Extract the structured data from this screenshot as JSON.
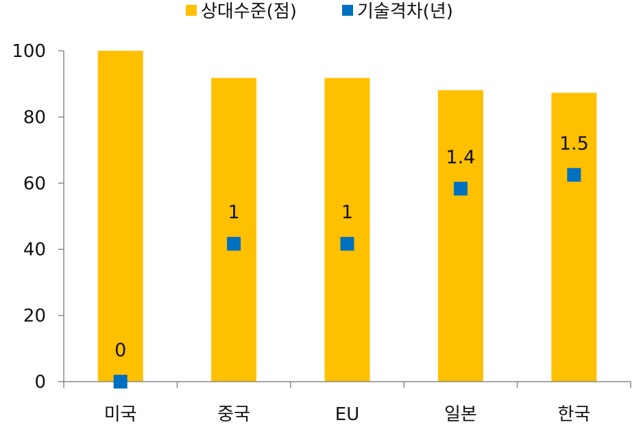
{
  "chart_data": {
    "type": "bar",
    "categories": [
      "미국",
      "중국",
      "EU",
      "일본",
      "한국"
    ],
    "series": [
      {
        "name": "상대수준(점)",
        "type": "bar",
        "axis": "left",
        "color": "#FFC000",
        "values": [
          100,
          91.8,
          91.8,
          88.1,
          87.3
        ]
      },
      {
        "name": "기술격차(년)",
        "type": "scatter",
        "marker": "square",
        "axis": "right",
        "color": "#0070C0",
        "values": [
          0,
          1,
          1,
          1.4,
          1.5
        ],
        "labels": [
          "0",
          "1",
          "1",
          "1.4",
          "1.5"
        ]
      }
    ],
    "yticks": [
      "0",
      "20",
      "40",
      "60",
      "80",
      "100"
    ],
    "ylim": [
      0,
      100
    ],
    "y2lim": [
      0,
      2.4
    ],
    "legend_position": "top",
    "grid": false
  }
}
